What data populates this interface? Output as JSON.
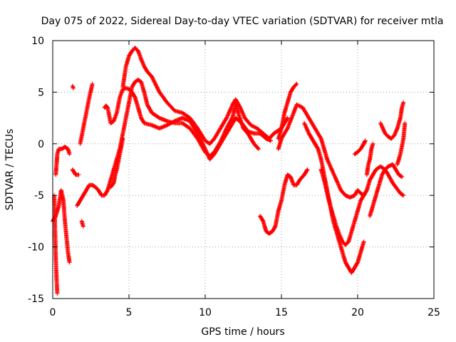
{
  "chart_data": {
    "type": "scatter",
    "title": "Day 075 of 2022, Sidereal Day-to-day VTEC variation (SDTVAR) for receiver mtla",
    "xlabel": "GPS time / hours",
    "ylabel": "SDTVAR / TECUs",
    "xlim": [
      0,
      25
    ],
    "ylim": [
      -15,
      10
    ],
    "xticks": [
      0,
      5,
      10,
      15,
      20,
      25
    ],
    "yticks": [
      -15,
      -10,
      -5,
      0,
      5,
      10
    ],
    "xtick_labels": [
      "0",
      "5",
      "10",
      "15",
      "20",
      "25"
    ],
    "ytick_labels": [
      "-15",
      "-10",
      "-5",
      "0",
      "5",
      "10"
    ],
    "grid": true,
    "marker": "+",
    "color": "#ff0000",
    "series": [
      {
        "name": "track-1",
        "points": [
          [
            0.0,
            -7.5
          ],
          [
            0.2,
            -7.0
          ],
          [
            0.4,
            -6.0
          ],
          [
            0.55,
            -4.5
          ],
          [
            0.7,
            -5.5
          ],
          [
            0.8,
            -7.5
          ],
          [
            0.9,
            -9.0
          ],
          [
            1.0,
            -10.5
          ],
          [
            1.1,
            -11.5
          ]
        ]
      },
      {
        "name": "track-2",
        "points": [
          [
            0.1,
            -5.0
          ],
          [
            0.15,
            -8.0
          ],
          [
            0.2,
            -11.0
          ],
          [
            0.25,
            -13.0
          ],
          [
            0.3,
            -14.5
          ]
        ]
      },
      {
        "name": "track-3",
        "points": [
          [
            0.2,
            -3.0
          ],
          [
            0.25,
            -2.0
          ],
          [
            0.3,
            -1.0
          ],
          [
            0.4,
            -0.5
          ],
          [
            0.6,
            -0.5
          ],
          [
            0.8,
            -0.3
          ],
          [
            1.0,
            -0.5
          ],
          [
            1.1,
            -1.0
          ]
        ]
      },
      {
        "name": "track-4",
        "points": [
          [
            1.3,
            -2.5
          ],
          [
            1.5,
            -3.0
          ],
          [
            1.7,
            -3.0
          ]
        ]
      },
      {
        "name": "track-5",
        "points": [
          [
            1.3,
            5.6
          ],
          [
            1.35,
            5.4
          ]
        ]
      },
      {
        "name": "track-6",
        "points": [
          [
            1.6,
            -6.0
          ],
          [
            1.8,
            -5.5
          ],
          [
            2.0,
            -5.0
          ],
          [
            2.2,
            -4.5
          ],
          [
            2.4,
            -4.0
          ],
          [
            2.6,
            -4.0
          ],
          [
            2.8,
            -4.2
          ],
          [
            3.0,
            -4.5
          ],
          [
            3.2,
            -5.0
          ],
          [
            3.4,
            -5.0
          ],
          [
            3.6,
            -4.5
          ],
          [
            3.8,
            -3.5
          ],
          [
            4.0,
            -2.5
          ],
          [
            4.2,
            -1.5
          ],
          [
            4.4,
            -0.5
          ],
          [
            4.6,
            1.0
          ],
          [
            4.8,
            2.5
          ],
          [
            5.0,
            4.0
          ],
          [
            5.2,
            5.5
          ],
          [
            5.4,
            6.0
          ],
          [
            5.6,
            6.2
          ],
          [
            5.8,
            6.0
          ],
          [
            6.0,
            5.0
          ],
          [
            6.2,
            3.8
          ],
          [
            6.5,
            3.0
          ],
          [
            7.0,
            2.5
          ],
          [
            7.5,
            2.2
          ],
          [
            8.0,
            2.0
          ],
          [
            8.5,
            2.0
          ],
          [
            9.0,
            1.5
          ],
          [
            9.5,
            0.5
          ],
          [
            10.0,
            -0.8
          ],
          [
            10.3,
            -1.2
          ],
          [
            10.6,
            -0.8
          ],
          [
            11.0,
            0.2
          ],
          [
            11.4,
            1.5
          ],
          [
            11.8,
            2.6
          ],
          [
            12.0,
            3.8
          ],
          [
            12.2,
            2.8
          ],
          [
            12.5,
            1.5
          ],
          [
            12.8,
            1.0
          ],
          [
            13.0,
            0.5
          ],
          [
            13.2,
            0.0
          ],
          [
            13.5,
            -0.5
          ]
        ]
      },
      {
        "name": "track-7",
        "points": [
          [
            1.8,
            0.0
          ],
          [
            2.0,
            1.5
          ],
          [
            2.2,
            3.0
          ],
          [
            2.4,
            4.5
          ],
          [
            2.6,
            5.8
          ]
        ]
      },
      {
        "name": "track-8",
        "points": [
          [
            1.9,
            -7.5
          ],
          [
            2.0,
            -8.0
          ]
        ]
      },
      {
        "name": "track-9",
        "points": [
          [
            3.4,
            3.5
          ],
          [
            3.5,
            3.7
          ],
          [
            3.6,
            3.5
          ],
          [
            3.8,
            2.0
          ],
          [
            4.0,
            2.2
          ],
          [
            4.2,
            3.0
          ],
          [
            4.4,
            4.5
          ],
          [
            4.6,
            5.3
          ],
          [
            4.8,
            5.4
          ],
          [
            5.0,
            5.3
          ],
          [
            5.2,
            5.0
          ],
          [
            5.4,
            4.5
          ],
          [
            5.6,
            3.5
          ],
          [
            5.8,
            2.5
          ],
          [
            6.0,
            2.0
          ],
          [
            6.5,
            1.8
          ],
          [
            7.0,
            1.5
          ],
          [
            7.5,
            1.8
          ],
          [
            8.0,
            2.2
          ],
          [
            8.5,
            2.5
          ],
          [
            9.0,
            2.2
          ],
          [
            9.5,
            1.0
          ],
          [
            10.0,
            -0.5
          ],
          [
            10.3,
            -1.5
          ],
          [
            10.6,
            -1.0
          ],
          [
            11.0,
            0.0
          ],
          [
            11.4,
            1.0
          ],
          [
            11.8,
            2.0
          ],
          [
            12.0,
            2.5
          ],
          [
            12.4,
            2.0
          ],
          [
            12.8,
            1.2
          ],
          [
            13.2,
            1.0
          ],
          [
            13.6,
            1.0
          ],
          [
            14.0,
            0.5
          ],
          [
            14.3,
            0.3
          ]
        ]
      },
      {
        "name": "track-10",
        "points": [
          [
            3.8,
            -4.2
          ],
          [
            4.0,
            -3.8
          ],
          [
            4.1,
            -3.0
          ],
          [
            4.2,
            -2.5
          ],
          [
            4.4,
            -1.0
          ],
          [
            4.6,
            0.5
          ]
        ]
      },
      {
        "name": "track-11",
        "points": [
          [
            4.6,
            5.5
          ],
          [
            4.8,
            7.5
          ],
          [
            5.0,
            8.5
          ],
          [
            5.2,
            9.0
          ],
          [
            5.4,
            9.3
          ],
          [
            5.6,
            9.0
          ],
          [
            5.8,
            8.2
          ],
          [
            6.0,
            7.5
          ],
          [
            6.2,
            7.0
          ],
          [
            6.5,
            6.5
          ],
          [
            7.0,
            5.0
          ],
          [
            7.5,
            4.0
          ],
          [
            8.0,
            3.2
          ],
          [
            8.5,
            3.0
          ],
          [
            9.0,
            2.5
          ],
          [
            9.5,
            1.5
          ],
          [
            10.0,
            0.3
          ],
          [
            10.3,
            0.0
          ],
          [
            10.6,
            0.5
          ],
          [
            11.0,
            1.5
          ],
          [
            11.4,
            2.5
          ],
          [
            11.8,
            3.8
          ],
          [
            12.0,
            4.3
          ],
          [
            12.3,
            3.5
          ],
          [
            12.6,
            2.5
          ],
          [
            13.0,
            1.8
          ],
          [
            13.4,
            1.5
          ],
          [
            13.8,
            1.0
          ],
          [
            14.2,
            0.5
          ],
          [
            14.5,
            1.0
          ],
          [
            15.0,
            1.5
          ],
          [
            15.2,
            2.0
          ],
          [
            15.4,
            2.5
          ]
        ]
      },
      {
        "name": "track-12",
        "points": [
          [
            13.6,
            -7.0
          ],
          [
            13.8,
            -7.5
          ],
          [
            14.0,
            -8.5
          ],
          [
            14.2,
            -8.7
          ],
          [
            14.4,
            -8.5
          ],
          [
            14.6,
            -8.0
          ],
          [
            14.8,
            -6.5
          ],
          [
            15.0,
            -5.5
          ],
          [
            15.2,
            -4.0
          ],
          [
            15.4,
            -3.0
          ],
          [
            15.6,
            -3.2
          ],
          [
            15.8,
            -4.0
          ],
          [
            16.0,
            -4.0
          ],
          [
            16.2,
            -3.5
          ],
          [
            16.5,
            -3.0
          ],
          [
            16.7,
            -2.5
          ]
        ]
      },
      {
        "name": "track-13",
        "points": [
          [
            14.8,
            0.5
          ],
          [
            15.0,
            1.5
          ],
          [
            15.2,
            3.0
          ],
          [
            15.4,
            4.0
          ],
          [
            15.6,
            5.0
          ],
          [
            15.8,
            5.5
          ],
          [
            16.0,
            5.8
          ]
        ]
      },
      {
        "name": "track-14",
        "points": [
          [
            14.8,
            -0.5
          ],
          [
            15.0,
            0.5
          ],
          [
            15.4,
            1.5
          ],
          [
            15.8,
            3.0
          ],
          [
            16.0,
            3.8
          ],
          [
            16.4,
            3.5
          ],
          [
            16.8,
            2.5
          ],
          [
            17.2,
            1.5
          ],
          [
            17.6,
            0.5
          ],
          [
            17.8,
            -0.5
          ],
          [
            18.0,
            -1.5
          ],
          [
            18.3,
            -2.5
          ],
          [
            18.6,
            -3.5
          ],
          [
            18.9,
            -4.5
          ],
          [
            19.2,
            -5.0
          ],
          [
            19.5,
            -5.2
          ],
          [
            19.8,
            -5.0
          ],
          [
            20.0,
            -4.5
          ],
          [
            20.2,
            -4.8
          ],
          [
            20.4,
            -5.0
          ],
          [
            20.6,
            -4.5
          ],
          [
            20.8,
            -3.5
          ],
          [
            21.0,
            -3.0
          ],
          [
            21.2,
            -2.5
          ],
          [
            21.5,
            -2.2
          ],
          [
            21.8,
            -2.5
          ],
          [
            22.0,
            -3.0
          ],
          [
            22.3,
            -3.8
          ],
          [
            22.5,
            -4.2
          ],
          [
            22.8,
            -4.8
          ],
          [
            23.0,
            -5.0
          ]
        ]
      },
      {
        "name": "track-15",
        "points": [
          [
            16.5,
            2.0
          ],
          [
            16.8,
            1.0
          ],
          [
            17.0,
            0.5
          ],
          [
            17.2,
            0.0
          ],
          [
            17.4,
            -0.5
          ],
          [
            17.6,
            -1.5
          ],
          [
            17.8,
            -3.0
          ],
          [
            18.0,
            -4.5
          ],
          [
            18.2,
            -6.0
          ],
          [
            18.4,
            -7.5
          ],
          [
            18.6,
            -8.5
          ],
          [
            18.8,
            -9.5
          ],
          [
            19.0,
            -10.5
          ],
          [
            19.2,
            -11.5
          ],
          [
            19.4,
            -12.0
          ],
          [
            19.6,
            -12.5
          ],
          [
            19.8,
            -12.0
          ],
          [
            20.0,
            -11.5
          ],
          [
            20.2,
            -10.5
          ],
          [
            20.4,
            -9.5
          ]
        ]
      },
      {
        "name": "track-16",
        "points": [
          [
            17.6,
            -2.5
          ],
          [
            17.8,
            -3.5
          ],
          [
            18.0,
            -4.8
          ],
          [
            18.2,
            -6.0
          ],
          [
            18.4,
            -7.0
          ],
          [
            18.6,
            -8.0
          ],
          [
            18.8,
            -8.8
          ],
          [
            19.0,
            -9.5
          ],
          [
            19.2,
            -9.8
          ],
          [
            19.4,
            -9.5
          ],
          [
            19.6,
            -8.5
          ],
          [
            19.8,
            -7.5
          ],
          [
            20.0,
            -6.5
          ],
          [
            20.2,
            -5.5
          ],
          [
            20.4,
            -5.0
          ]
        ]
      },
      {
        "name": "track-17",
        "points": [
          [
            19.8,
            -1.0
          ],
          [
            20.0,
            -0.8
          ],
          [
            20.2,
            -0.5
          ],
          [
            20.4,
            0.0
          ],
          [
            20.5,
            0.3
          ]
        ]
      },
      {
        "name": "track-18",
        "points": [
          [
            20.8,
            -7.0
          ],
          [
            21.0,
            -6.0
          ],
          [
            21.2,
            -5.0
          ],
          [
            21.4,
            -4.0
          ],
          [
            21.6,
            -3.0
          ],
          [
            21.8,
            -2.5
          ],
          [
            22.0,
            -2.2
          ],
          [
            22.3,
            -2.0
          ],
          [
            22.5,
            -2.5
          ],
          [
            22.7,
            -3.0
          ],
          [
            22.9,
            -3.2
          ]
        ]
      },
      {
        "name": "track-19",
        "points": [
          [
            20.6,
            -3.0
          ],
          [
            20.7,
            -2.0
          ],
          [
            20.8,
            -1.5
          ],
          [
            20.9,
            -0.5
          ],
          [
            21.0,
            0.0
          ]
        ]
      },
      {
        "name": "track-20",
        "points": [
          [
            21.5,
            2.0
          ],
          [
            21.8,
            1.0
          ],
          [
            22.0,
            0.7
          ],
          [
            22.2,
            0.5
          ],
          [
            22.4,
            0.8
          ],
          [
            22.6,
            1.5
          ],
          [
            22.8,
            2.5
          ],
          [
            22.9,
            3.5
          ],
          [
            23.0,
            4.0
          ]
        ]
      },
      {
        "name": "track-21",
        "points": [
          [
            22.6,
            -2.0
          ],
          [
            22.8,
            -1.0
          ],
          [
            23.0,
            0.5
          ],
          [
            23.1,
            2.0
          ]
        ]
      }
    ]
  }
}
